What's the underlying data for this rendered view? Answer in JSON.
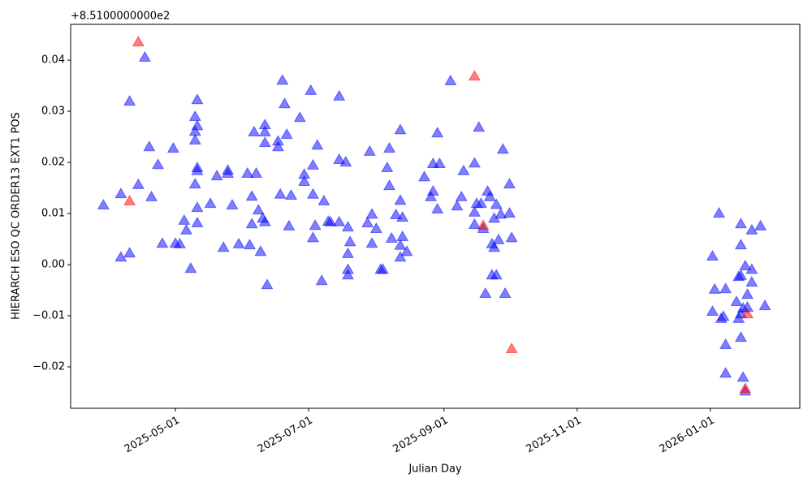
{
  "chart_data": {
    "type": "scatter",
    "offset_text": "+8.5100000000e2",
    "xlabel": "Julian Day",
    "ylabel": "HIERARCH ESO QC ORDER13 EXT1 POS",
    "xlim": [
      "2025-03-14",
      "2026-02-11"
    ],
    "xticks": [
      "2025-05-01",
      "2025-07-01",
      "2025-09-01",
      "2025-11-01",
      "2026-01-01"
    ],
    "ylim": [
      -0.0281,
      0.047
    ],
    "yticks": [
      {
        "value": -0.02,
        "label": "−0.02"
      },
      {
        "value": -0.01,
        "label": "−0.01"
      },
      {
        "value": 0,
        "label": "0.00"
      },
      {
        "value": 0.01,
        "label": "0.01"
      },
      {
        "value": 0.02,
        "label": "0.02"
      },
      {
        "value": 0.03,
        "label": "0.03"
      },
      {
        "value": 0.04,
        "label": "0.04"
      }
    ],
    "marker": "triangle",
    "series": [
      {
        "color": "#0000ff",
        "x": [
          "2025-03-29",
          "2025-04-06",
          "2025-04-06",
          "2025-04-10",
          "2025-04-10",
          "2025-04-14",
          "2025-04-17",
          "2025-04-19",
          "2025-04-20",
          "2025-04-23",
          "2025-04-25",
          "2025-04-30",
          "2025-05-01",
          "2025-05-03",
          "2025-05-05",
          "2025-05-06",
          "2025-05-08",
          "2025-05-10",
          "2025-05-10",
          "2025-05-10",
          "2025-05-11",
          "2025-05-10",
          "2025-05-11",
          "2025-05-11",
          "2025-05-11",
          "2025-05-11",
          "2025-05-11",
          "2025-05-17",
          "2025-05-20",
          "2025-05-23",
          "2025-05-25",
          "2025-05-25",
          "2025-05-27",
          "2025-05-30",
          "2025-06-03",
          "2025-06-04",
          "2025-06-05",
          "2025-06-05",
          "2025-06-06",
          "2025-06-07",
          "2025-06-08",
          "2025-06-09",
          "2025-06-10",
          "2025-06-11",
          "2025-06-11",
          "2025-06-11",
          "2025-06-11",
          "2025-06-12",
          "2025-06-17",
          "2025-06-17",
          "2025-06-18",
          "2025-06-19",
          "2025-06-20",
          "2025-06-21",
          "2025-06-22",
          "2025-06-23",
          "2025-06-27",
          "2025-06-29",
          "2025-06-29",
          "2025-07-02",
          "2025-07-03",
          "2025-07-03",
          "2025-07-03",
          "2025-07-04",
          "2025-07-05",
          "2025-07-07",
          "2025-07-08",
          "2025-07-10",
          "2025-07-11",
          "2025-07-15",
          "2025-07-15",
          "2025-07-15",
          "2025-07-18",
          "2025-07-19",
          "2025-07-19",
          "2025-07-19",
          "2025-07-19",
          "2025-07-20",
          "2025-07-28",
          "2025-07-29",
          "2025-07-30",
          "2025-07-30",
          "2025-08-01",
          "2025-08-03",
          "2025-08-04",
          "2025-08-06",
          "2025-08-07",
          "2025-08-07",
          "2025-08-08",
          "2025-08-10",
          "2025-08-12",
          "2025-08-12",
          "2025-08-12",
          "2025-08-12",
          "2025-08-13",
          "2025-08-13",
          "2025-08-15",
          "2025-08-23",
          "2025-08-26",
          "2025-08-27",
          "2025-08-27",
          "2025-08-29",
          "2025-08-29",
          "2025-08-30",
          "2025-09-04",
          "2025-09-07",
          "2025-09-09",
          "2025-09-10",
          "2025-09-15",
          "2025-09-15",
          "2025-09-15",
          "2025-09-16",
          "2025-09-17",
          "2025-09-18",
          "2025-09-19",
          "2025-09-20",
          "2025-09-21",
          "2025-09-22",
          "2025-09-23",
          "2025-09-23",
          "2025-09-24",
          "2025-09-24",
          "2025-09-25",
          "2025-09-25",
          "2025-09-26",
          "2025-09-27",
          "2025-09-28",
          "2025-09-29",
          "2025-10-01",
          "2025-10-01",
          "2025-10-02",
          "2026-01-02",
          "2026-01-02",
          "2026-01-03",
          "2026-01-05",
          "2026-01-06",
          "2026-01-07",
          "2026-01-08",
          "2026-01-08",
          "2026-01-08",
          "2026-01-13",
          "2026-01-14",
          "2026-01-14",
          "2026-01-15",
          "2026-01-15",
          "2026-01-15",
          "2026-01-15",
          "2026-01-15",
          "2026-01-16",
          "2026-01-16",
          "2026-01-17",
          "2026-01-17",
          "2026-01-18",
          "2026-01-18",
          "2026-01-20",
          "2026-01-20",
          "2026-01-20",
          "2026-01-24",
          "2026-01-26"
        ],
        "values": [
          0.0116,
          0.0138,
          0.0014,
          0.0319,
          0.0022,
          0.0156,
          0.0405,
          0.023,
          0.0132,
          0.0195,
          0.0041,
          0.0227,
          0.0041,
          0.004,
          0.0086,
          0.0067,
          -0.0008,
          0.0157,
          0.026,
          0.0289,
          0.0322,
          0.0243,
          0.0189,
          0.0183,
          0.0271,
          0.0111,
          0.0081,
          0.0119,
          0.0173,
          0.0033,
          0.0178,
          0.0184,
          0.0116,
          0.004,
          0.0178,
          0.0038,
          0.0133,
          0.0079,
          0.0259,
          0.0178,
          0.0106,
          0.0025,
          0.009,
          0.0273,
          0.0259,
          0.0238,
          0.0083,
          -0.004,
          0.0241,
          0.023,
          0.0137,
          0.036,
          0.0314,
          0.0254,
          0.0075,
          0.0135,
          0.0287,
          0.0176,
          0.0162,
          0.034,
          0.0194,
          0.0137,
          0.0052,
          0.0076,
          0.0233,
          -0.0032,
          0.0124,
          0.0084,
          0.0083,
          0.0329,
          0.0083,
          0.0205,
          0.02,
          0.0073,
          0.0021,
          -0.001,
          -0.0021,
          0.0044,
          0.0081,
          0.0221,
          0.0098,
          0.0041,
          0.007,
          -0.001,
          -0.001,
          0.0189,
          0.0227,
          0.0154,
          0.0051,
          0.0097,
          0.0037,
          0.0263,
          0.0125,
          0.0014,
          0.0054,
          0.0092,
          0.0025,
          0.0171,
          0.0132,
          0.0143,
          0.0197,
          0.0257,
          0.0108,
          0.0197,
          0.0359,
          0.0114,
          0.0132,
          0.0183,
          0.0198,
          0.0102,
          0.0078,
          0.0119,
          0.0268,
          0.0119,
          0.007,
          -0.0057,
          0.0143,
          0.0132,
          -0.0021,
          0.004,
          0.009,
          0.0033,
          0.0117,
          -0.0021,
          0.0048,
          0.0098,
          0.0225,
          -0.0057,
          0.0157,
          0.01,
          0.0052,
          0.0016,
          -0.0092,
          -0.0049,
          0.01,
          -0.0106,
          -0.0102,
          -0.0048,
          -0.0157,
          -0.0213,
          -0.0073,
          -0.0024,
          -0.0106,
          -0.0022,
          0.0038,
          0.0079,
          -0.0143,
          -0.0097,
          -0.0086,
          -0.0221,
          -0.0003,
          -0.0248,
          -0.0084,
          -0.0059,
          -0.0035,
          -0.001,
          0.0067,
          0.0075,
          -0.0081
        ]
      },
      {
        "color": "#ff0000",
        "x": [
          "2025-04-14",
          "2025-04-10",
          "2025-09-15",
          "2025-09-19",
          "2025-10-02",
          "2026-01-17",
          "2026-01-18"
        ],
        "values": [
          0.0435,
          0.0124,
          0.0368,
          0.0076,
          -0.0165,
          -0.0243,
          -0.0097
        ]
      }
    ]
  }
}
